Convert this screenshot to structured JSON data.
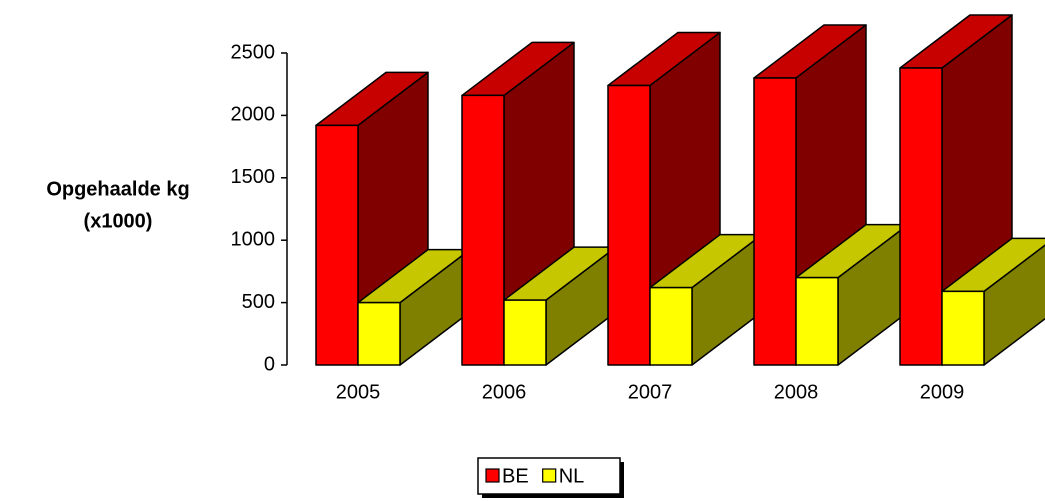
{
  "chart_data": {
    "type": "bar3d",
    "y_label": [
      "Opgehaalde kg",
      "(x1000)"
    ],
    "categories": [
      "2005",
      "2006",
      "2007",
      "2008",
      "2009"
    ],
    "series": [
      {
        "name": "BE",
        "color": "#ff0000",
        "values": [
          1920,
          2160,
          2240,
          2300,
          2380
        ]
      },
      {
        "name": "NL",
        "color": "#ffff00",
        "values": [
          500,
          520,
          620,
          700,
          590
        ]
      }
    ],
    "ylim": [
      0,
      2500
    ],
    "yticks": [
      0,
      500,
      1000,
      1500,
      2000,
      2500
    ],
    "legend": "bottom"
  }
}
